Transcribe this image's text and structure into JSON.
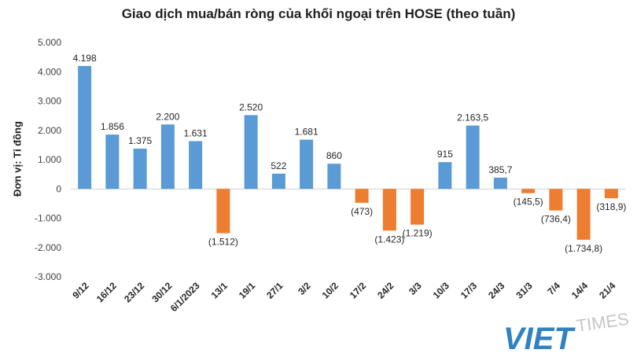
{
  "chart_data": {
    "type": "bar",
    "title": "Giao dịch mua/bán ròng của khối ngoại trên HOSE (theo tuần)",
    "ylabel": "Đơn vị: Tỉ đồng",
    "xlabel": "",
    "ylim": [
      -3000,
      5000
    ],
    "yticks": [
      5000,
      4000,
      3000,
      2000,
      1000,
      0,
      -1000,
      -2000,
      -3000
    ],
    "ytick_labels": [
      "5.000",
      "4.000",
      "3.000",
      "2.000",
      "1.000",
      "0",
      "-1.000",
      "-2.000",
      "-3.000"
    ],
    "grid": false,
    "categories": [
      "9/12",
      "16/12",
      "23/12",
      "30/12",
      "6/1/2023",
      "13/1",
      "19/1",
      "27/1",
      "3/2",
      "10/2",
      "17/2",
      "24/2",
      "3/3",
      "10/3",
      "17/3",
      "24/3",
      "31/3",
      "7/4",
      "14/4",
      "21/4"
    ],
    "values": [
      4198,
      1856,
      1375,
      2200,
      1631,
      -1512,
      2520,
      522,
      1681,
      860,
      -473,
      -1423,
      -1219,
      915,
      2163.5,
      385.7,
      -145.5,
      -736.4,
      -1734.8,
      -318.9
    ],
    "data_labels": [
      "4.198",
      "1.856",
      "1.375",
      "2.200",
      "1.631",
      "(1.512)",
      "2.520",
      "522",
      "1.681",
      "860",
      "(473)",
      "(1.423)",
      "(1.219)",
      "915",
      "2.163,5",
      "385,7",
      "(145,5)",
      "(736,4)",
      "(1.734,8)",
      "(318,9)"
    ],
    "colors": {
      "positive": "#5b9bd5",
      "negative": "#ed7d31"
    }
  },
  "watermark": {
    "text_left": "VIET",
    "text_right": "TIMES",
    "colors": {
      "blue": "#1b75bb",
      "red": "#e2231a"
    }
  }
}
